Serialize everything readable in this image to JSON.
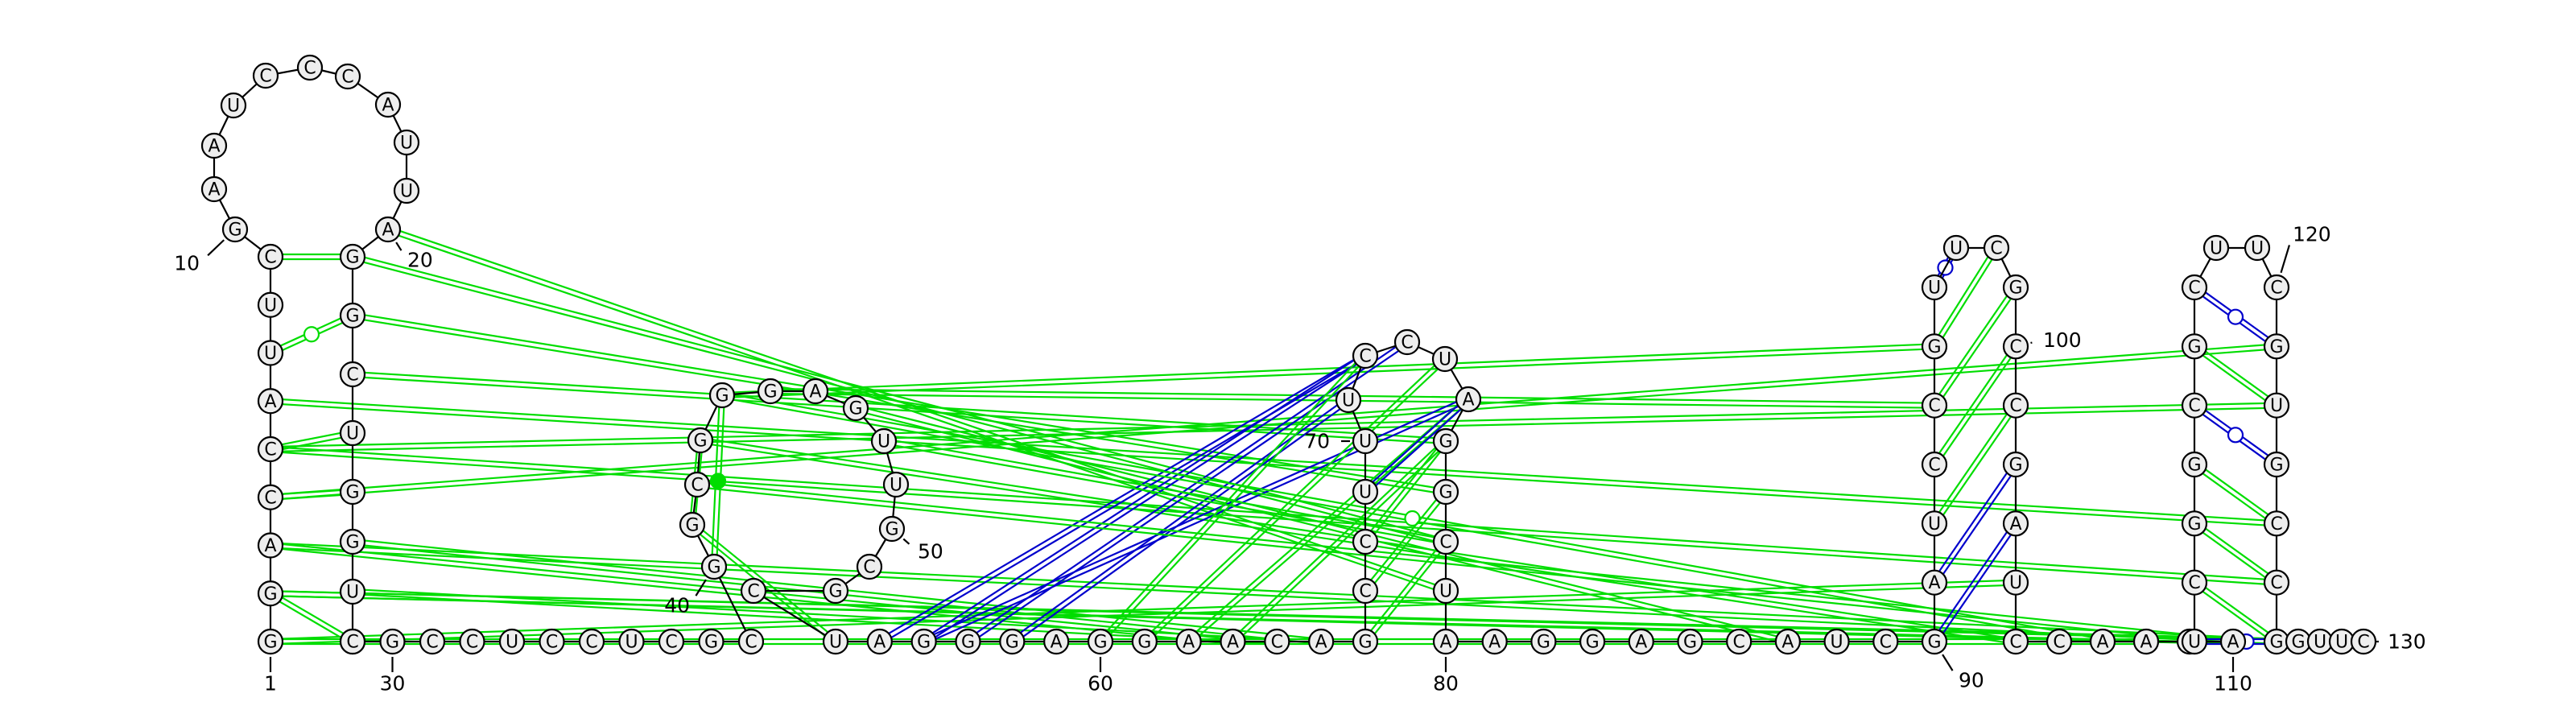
{
  "diagram": {
    "type": "RNA secondary structure",
    "colors": {
      "canonical_pair": "#0000cc",
      "noncanonical_pair": "#00dd00",
      "backbone": "#000000",
      "nucleotide_fill": "#eeeeee"
    },
    "nucleotides": [
      {
        "n": 1,
        "b": "G"
      },
      {
        "n": 2,
        "b": "G"
      },
      {
        "n": 3,
        "b": "A"
      },
      {
        "n": 4,
        "b": "C"
      },
      {
        "n": 5,
        "b": "C"
      },
      {
        "n": 6,
        "b": "A"
      },
      {
        "n": 7,
        "b": "U"
      },
      {
        "n": 8,
        "b": "U"
      },
      {
        "n": 9,
        "b": "C"
      },
      {
        "n": 10,
        "b": "G"
      },
      {
        "n": 11,
        "b": "A"
      },
      {
        "n": 12,
        "b": "A"
      },
      {
        "n": 13,
        "b": "U"
      },
      {
        "n": 14,
        "b": "C"
      },
      {
        "n": 15,
        "b": "C"
      },
      {
        "n": 16,
        "b": "C"
      },
      {
        "n": 17,
        "b": "A"
      },
      {
        "n": 18,
        "b": "U"
      },
      {
        "n": 19,
        "b": "U"
      },
      {
        "n": 20,
        "b": "A"
      },
      {
        "n": 21,
        "b": "G"
      },
      {
        "n": 22,
        "b": "G"
      },
      {
        "n": 23,
        "b": "C"
      },
      {
        "n": 24,
        "b": "U"
      },
      {
        "n": 25,
        "b": "G"
      },
      {
        "n": 26,
        "b": "G"
      },
      {
        "n": 27,
        "b": "U"
      },
      {
        "n": 28,
        "b": "G"
      },
      {
        "n": 29,
        "b": "C"
      },
      {
        "n": 30,
        "b": "G"
      },
      {
        "n": 31,
        "b": "C"
      },
      {
        "n": 32,
        "b": "C"
      },
      {
        "n": 33,
        "b": "U"
      },
      {
        "n": 34,
        "b": "C"
      },
      {
        "n": 35,
        "b": "C"
      },
      {
        "n": 36,
        "b": "U"
      },
      {
        "n": 37,
        "b": "C"
      },
      {
        "n": 38,
        "b": "G"
      },
      {
        "n": 39,
        "b": "C"
      },
      {
        "n": 40,
        "b": "G"
      },
      {
        "n": 41,
        "b": "G"
      },
      {
        "n": 42,
        "b": "C"
      },
      {
        "n": 43,
        "b": "G"
      },
      {
        "n": 44,
        "b": "G"
      },
      {
        "n": 45,
        "b": "G"
      },
      {
        "n": 46,
        "b": "A"
      },
      {
        "n": 47,
        "b": "G"
      },
      {
        "n": 48,
        "b": "U"
      },
      {
        "n": 49,
        "b": "U"
      },
      {
        "n": 50,
        "b": "G"
      },
      {
        "n": 51,
        "b": "C"
      },
      {
        "n": 52,
        "b": "G"
      },
      {
        "n": 53,
        "b": "C"
      },
      {
        "n": 54,
        "b": "U"
      },
      {
        "n": 55,
        "b": "A"
      },
      {
        "n": 56,
        "b": "G"
      },
      {
        "n": 57,
        "b": "G"
      },
      {
        "n": 58,
        "b": "G"
      },
      {
        "n": 59,
        "b": "A"
      },
      {
        "n": 60,
        "b": "G"
      },
      {
        "n": 61,
        "b": "G"
      },
      {
        "n": 62,
        "b": "A"
      },
      {
        "n": 63,
        "b": "A"
      },
      {
        "n": 64,
        "b": "C"
      },
      {
        "n": 65,
        "b": "A"
      },
      {
        "n": 66,
        "b": "G"
      },
      {
        "n": 67,
        "b": "C"
      },
      {
        "n": 68,
        "b": "C"
      },
      {
        "n": 69,
        "b": "U"
      },
      {
        "n": 70,
        "b": "U"
      },
      {
        "n": 71,
        "b": "U"
      },
      {
        "n": 72,
        "b": "C"
      },
      {
        "n": 73,
        "b": "C"
      },
      {
        "n": 74,
        "b": "U"
      },
      {
        "n": 75,
        "b": "A"
      },
      {
        "n": 76,
        "b": "G"
      },
      {
        "n": 77,
        "b": "G"
      },
      {
        "n": 78,
        "b": "C"
      },
      {
        "n": 79,
        "b": "U"
      },
      {
        "n": 80,
        "b": "A"
      },
      {
        "n": 81,
        "b": "A"
      },
      {
        "n": 82,
        "b": "G"
      },
      {
        "n": 83,
        "b": "G"
      },
      {
        "n": 84,
        "b": "A"
      },
      {
        "n": 85,
        "b": "G"
      },
      {
        "n": 86,
        "b": "C"
      },
      {
        "n": 87,
        "b": "A"
      },
      {
        "n": 88,
        "b": "U"
      },
      {
        "n": 89,
        "b": "C"
      },
      {
        "n": 90,
        "b": "G"
      },
      {
        "n": 91,
        "b": "A"
      },
      {
        "n": 92,
        "b": "U"
      },
      {
        "n": 93,
        "b": "C"
      },
      {
        "n": 94,
        "b": "C"
      },
      {
        "n": 95,
        "b": "G"
      },
      {
        "n": 96,
        "b": "U"
      },
      {
        "n": 97,
        "b": "U"
      },
      {
        "n": 98,
        "b": "C"
      },
      {
        "n": 99,
        "b": "G"
      },
      {
        "n": 100,
        "b": "C"
      },
      {
        "n": 101,
        "b": "C"
      },
      {
        "n": 102,
        "b": "G"
      },
      {
        "n": 103,
        "b": "A"
      },
      {
        "n": 104,
        "b": "U"
      },
      {
        "n": 105,
        "b": "C"
      },
      {
        "n": 106,
        "b": "C"
      },
      {
        "n": 107,
        "b": "A"
      },
      {
        "n": 108,
        "b": "A"
      },
      {
        "n": 109,
        "b": "A"
      },
      {
        "n": 110,
        "b": "A"
      },
      {
        "n": 111,
        "b": "U"
      },
      {
        "n": 112,
        "b": "C"
      },
      {
        "n": 113,
        "b": "G"
      },
      {
        "n": 114,
        "b": "G"
      },
      {
        "n": 115,
        "b": "C"
      },
      {
        "n": 116,
        "b": "G"
      },
      {
        "n": 117,
        "b": "C"
      },
      {
        "n": 118,
        "b": "U"
      },
      {
        "n": 119,
        "b": "U"
      },
      {
        "n": 120,
        "b": "C"
      },
      {
        "n": 121,
        "b": "G"
      },
      {
        "n": 122,
        "b": "U"
      },
      {
        "n": 123,
        "b": "G"
      },
      {
        "n": 124,
        "b": "C"
      },
      {
        "n": 125,
        "b": "C"
      },
      {
        "n": 126,
        "b": "G"
      },
      {
        "n": 127,
        "b": "G"
      },
      {
        "n": 128,
        "b": "U"
      },
      {
        "n": 129,
        "b": "U"
      },
      {
        "n": 130,
        "b": "C"
      }
    ],
    "position_labels": [
      {
        "n": 1,
        "text": "1"
      },
      {
        "n": 10,
        "text": "10"
      },
      {
        "n": 20,
        "text": "20"
      },
      {
        "n": 30,
        "text": "30"
      },
      {
        "n": 40,
        "text": "40"
      },
      {
        "n": 50,
        "text": "50"
      },
      {
        "n": 60,
        "text": "60"
      },
      {
        "n": 70,
        "text": "70"
      },
      {
        "n": 80,
        "text": "80"
      },
      {
        "n": 90,
        "text": "90"
      },
      {
        "n": 100,
        "text": "100"
      },
      {
        "n": 110,
        "text": "110"
      },
      {
        "n": 120,
        "text": "120"
      },
      {
        "n": 130,
        "text": "130"
      }
    ],
    "stem_pairs": [
      {
        "i": 1,
        "j": 29,
        "type": "noncanonical"
      },
      {
        "i": 2,
        "j": 28,
        "type": "noncanonical"
      },
      {
        "i": 4,
        "j": 25,
        "type": "noncanonical"
      },
      {
        "i": 5,
        "j": 24,
        "type": "noncanonical"
      },
      {
        "i": 9,
        "j": 21,
        "type": "noncanonical"
      },
      {
        "i": 7,
        "j": 22,
        "type": "noncanonical_open"
      },
      {
        "i": 40,
        "j": 44,
        "type": "noncanonical_dot"
      },
      {
        "i": 41,
        "j": 43,
        "type": "noncanonical"
      },
      {
        "i": 66,
        "j": 78,
        "type": "noncanonical"
      },
      {
        "i": 67,
        "j": 77,
        "type": "noncanonical"
      },
      {
        "i": 68,
        "j": 76,
        "type": "noncanonical"
      },
      {
        "i": 69,
        "j": 75,
        "type": "canonical"
      },
      {
        "i": 90,
        "j": 103,
        "type": "canonical"
      },
      {
        "i": 91,
        "j": 102,
        "type": "canonical"
      },
      {
        "i": 92,
        "j": 101,
        "type": "noncanonical"
      },
      {
        "i": 93,
        "j": 100,
        "type": "noncanonical"
      },
      {
        "i": 94,
        "j": 99,
        "type": "noncanonical"
      },
      {
        "i": 95,
        "j": 98,
        "type": "noncanonical"
      },
      {
        "i": 96,
        "j": 97,
        "type": "canonical_open"
      },
      {
        "i": 111,
        "j": 127,
        "type": "canonical_open"
      },
      {
        "i": 112,
        "j": 126,
        "type": "noncanonical"
      },
      {
        "i": 113,
        "j": 125,
        "type": "noncanonical"
      },
      {
        "i": 114,
        "j": 124,
        "type": "noncanonical"
      },
      {
        "i": 115,
        "j": 123,
        "type": "canonical_open"
      },
      {
        "i": 116,
        "j": 122,
        "type": "noncanonical"
      },
      {
        "i": 117,
        "j": 121,
        "type": "canonical_open"
      }
    ],
    "long_range_pairs": [
      {
        "i": 20,
        "j": 79,
        "type": "noncanonical"
      },
      {
        "i": 21,
        "j": 78,
        "type": "noncanonical"
      },
      {
        "i": 22,
        "j": 77,
        "type": "noncanonical"
      },
      {
        "i": 23,
        "j": 76,
        "type": "noncanonical"
      },
      {
        "i": 26,
        "j": 65,
        "type": "noncanonical"
      },
      {
        "i": 27,
        "j": 64,
        "type": "noncanonical"
      },
      {
        "i": 2,
        "j": 110,
        "type": "noncanonical"
      },
      {
        "i": 3,
        "j": 63,
        "type": "noncanonical"
      },
      {
        "i": 4,
        "j": 121,
        "type": "noncanonical"
      },
      {
        "i": 5,
        "j": 122,
        "type": "noncanonical"
      },
      {
        "i": 6,
        "j": 124,
        "type": "noncanonical"
      },
      {
        "i": 5,
        "j": 125,
        "type": "noncanonical"
      },
      {
        "i": 3,
        "j": 126,
        "type": "noncanonical"
      },
      {
        "i": 2,
        "j": 127,
        "type": "noncanonical"
      },
      {
        "i": 1,
        "j": 104,
        "type": "noncanonical"
      },
      {
        "i": 28,
        "j": 108,
        "type": "noncanonical"
      },
      {
        "i": 45,
        "j": 94,
        "type": "noncanonical"
      },
      {
        "i": 44,
        "j": 95,
        "type": "noncanonical"
      },
      {
        "i": 43,
        "j": 105,
        "type": "noncanonical"
      },
      {
        "i": 47,
        "j": 87,
        "type": "noncanonical"
      },
      {
        "i": 56,
        "j": 72,
        "type": "canonical"
      },
      {
        "i": 57,
        "j": 73,
        "type": "canonical"
      },
      {
        "i": 58,
        "j": 71,
        "type": "canonical"
      },
      {
        "i": 55,
        "j": 72,
        "type": "canonical"
      },
      {
        "i": 56,
        "j": 75,
        "type": "canonical"
      },
      {
        "i": 60,
        "j": 72,
        "type": "noncanonical"
      },
      {
        "i": 61,
        "j": 74,
        "type": "noncanonical"
      },
      {
        "i": 62,
        "j": 75,
        "type": "noncanonical"
      },
      {
        "i": 63,
        "j": 76,
        "type": "noncanonical"
      },
      {
        "i": 41,
        "j": 54,
        "type": "noncanonical"
      },
      {
        "i": 42,
        "j": 110,
        "type": "noncanonical"
      },
      {
        "i": 48,
        "j": 78,
        "type": "noncanonical"
      },
      {
        "i": 44,
        "j": 107,
        "type": "noncanonical_open"
      }
    ]
  }
}
